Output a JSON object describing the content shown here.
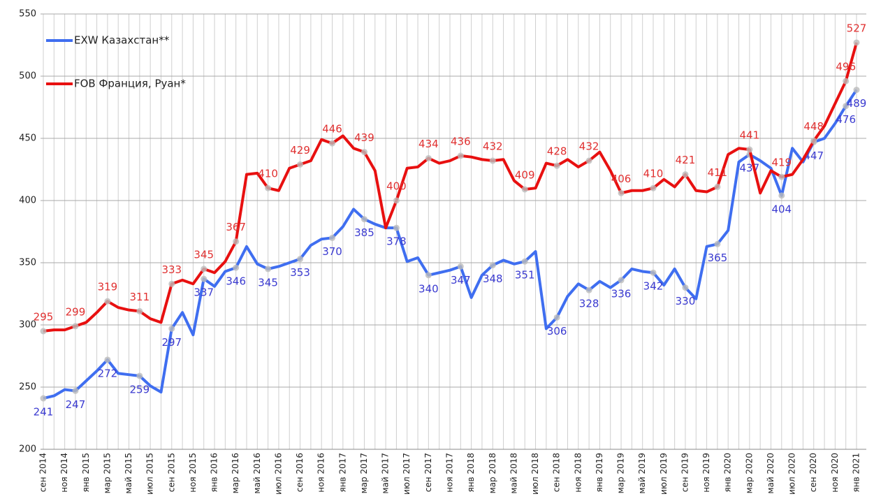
{
  "chart_data": {
    "type": "line",
    "categories": [
      "сен 2014",
      null,
      "ноя 2014",
      null,
      "янв 2015",
      null,
      "мар 2015",
      null,
      "май 2015",
      null,
      "июл 2015",
      null,
      "сен 2015",
      null,
      "ноя 2015",
      null,
      "янв 2016",
      null,
      "мар 2016",
      null,
      "май 2016",
      null,
      "июл 2016",
      null,
      "сен 2016",
      null,
      "ноя 2016",
      null,
      "янв 2017",
      null,
      "мар 2017",
      null,
      "май 2017",
      null,
      "июл 2017",
      null,
      "сен 2017",
      null,
      "ноя 2017",
      null,
      "янв 2018",
      null,
      "мар 2018",
      null,
      "май 2018",
      null,
      "июл 2018",
      null,
      "сен 2018",
      null,
      "ноя 2018",
      null,
      "янв 2019",
      null,
      "мар 2019",
      null,
      "май 2019",
      null,
      "июл 2019",
      null,
      "сен 2019",
      null,
      "ноя 2019",
      null,
      "янв 2020",
      null,
      "мар 2020",
      null,
      "май 2020",
      null,
      "июл 2020",
      null,
      "сен 2020",
      null,
      "ноя 2020",
      null,
      "янв 2021"
    ],
    "series": [
      {
        "name": "EXW Казахстан**",
        "color": "#3f6ef0",
        "label_color": "#3a3ad0",
        "values": [
          241,
          243,
          248,
          247,
          255,
          263,
          272,
          261,
          260,
          259,
          251,
          246,
          297,
          310,
          292,
          337,
          331,
          343,
          346,
          363,
          349,
          345,
          347,
          350,
          353,
          364,
          369,
          370,
          379,
          393,
          385,
          381,
          378,
          378,
          351,
          354,
          340,
          342,
          344,
          347,
          322,
          340,
          348,
          352,
          349,
          351,
          359,
          297,
          306,
          323,
          333,
          328,
          335,
          330,
          336,
          345,
          343,
          342,
          332,
          345,
          330,
          321,
          363,
          365,
          376,
          431,
          437,
          432,
          426,
          404,
          442,
          431,
          447,
          450,
          462,
          476,
          489
        ],
        "value_labels": [
          "241",
          null,
          null,
          "247",
          null,
          null,
          "272",
          null,
          null,
          "259",
          null,
          null,
          "297",
          null,
          null,
          "337",
          null,
          null,
          "346",
          null,
          null,
          "345",
          null,
          null,
          "353",
          null,
          null,
          "370",
          null,
          null,
          "385",
          null,
          null,
          "378",
          null,
          null,
          "340",
          null,
          null,
          "347",
          null,
          null,
          "348",
          null,
          null,
          "351",
          null,
          null,
          "306",
          null,
          null,
          "328",
          null,
          null,
          "336",
          null,
          null,
          "342",
          null,
          null,
          "330",
          null,
          null,
          "365",
          null,
          null,
          "437",
          null,
          null,
          "404",
          null,
          null,
          "447",
          null,
          null,
          "476",
          "489"
        ]
      },
      {
        "name": "FOB Франция, Руан*",
        "color": "#e81010",
        "label_color": "#e03030",
        "values": [
          295,
          296,
          296,
          299,
          302,
          310,
          319,
          314,
          312,
          311,
          305,
          302,
          333,
          336,
          333,
          345,
          342,
          351,
          367,
          421,
          422,
          410,
          408,
          426,
          429,
          432,
          449,
          446,
          452,
          442,
          439,
          424,
          378,
          400,
          426,
          427,
          434,
          430,
          432,
          436,
          435,
          433,
          432,
          433,
          416,
          409,
          410,
          430,
          428,
          433,
          427,
          432,
          439,
          424,
          406,
          408,
          408,
          410,
          417,
          411,
          421,
          408,
          407,
          411,
          437,
          442,
          441,
          406,
          424,
          419,
          421,
          433,
          448,
          460,
          478,
          496,
          527
        ],
        "value_labels": [
          "295",
          null,
          null,
          "299",
          null,
          null,
          "319",
          null,
          null,
          "311",
          null,
          null,
          "333",
          null,
          null,
          "345",
          null,
          null,
          "367",
          null,
          null,
          "410",
          null,
          null,
          "429",
          null,
          null,
          "446",
          null,
          null,
          "439",
          null,
          null,
          "400",
          null,
          null,
          "434",
          null,
          null,
          "436",
          null,
          null,
          "432",
          null,
          null,
          "409",
          null,
          null,
          "428",
          null,
          null,
          "432",
          null,
          null,
          "406",
          null,
          null,
          "410",
          null,
          null,
          "421",
          null,
          null,
          "411",
          null,
          null,
          "441",
          null,
          null,
          "419",
          null,
          null,
          "448",
          null,
          null,
          "496",
          "527"
        ]
      }
    ],
    "ylim": [
      200,
      550
    ],
    "yticks": [
      200,
      250,
      300,
      350,
      400,
      450,
      500,
      550
    ],
    "grid": true
  }
}
